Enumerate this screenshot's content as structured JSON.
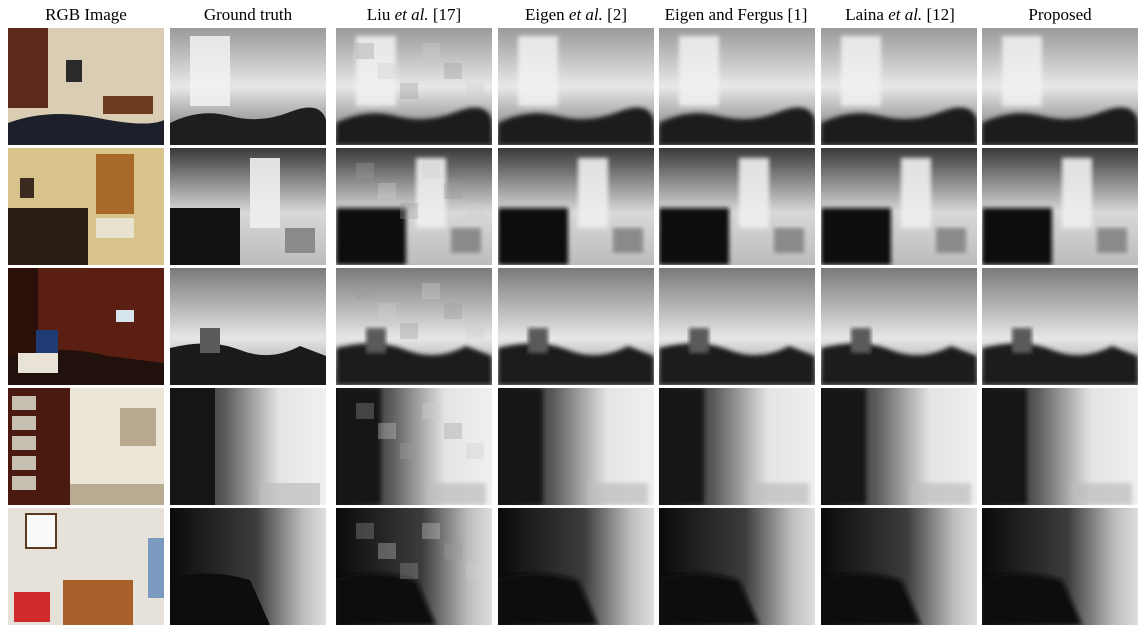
{
  "figure": {
    "columns": [
      {
        "id": "rgb",
        "label": "RGB Image"
      },
      {
        "id": "gt",
        "label": "Ground truth"
      },
      {
        "id": "liu",
        "label_main": "Liu",
        "label_etal": "et al.",
        "label_ref": "[17]"
      },
      {
        "id": "eigen",
        "label_main": "Eigen",
        "label_etal": "et al.",
        "label_ref": "[2]"
      },
      {
        "id": "eigen_fergus",
        "label": "Eigen and Fergus [1]"
      },
      {
        "id": "laina",
        "label_main": "Laina",
        "label_etal": "et al.",
        "label_ref": "[12]"
      },
      {
        "id": "proposed",
        "label": "Proposed"
      }
    ],
    "rows": [
      {
        "scene": "bedroom"
      },
      {
        "scene": "office with window"
      },
      {
        "scene": "wood-panelled study"
      },
      {
        "scene": "room with bookshelf"
      },
      {
        "scene": "office with red trays"
      }
    ]
  }
}
